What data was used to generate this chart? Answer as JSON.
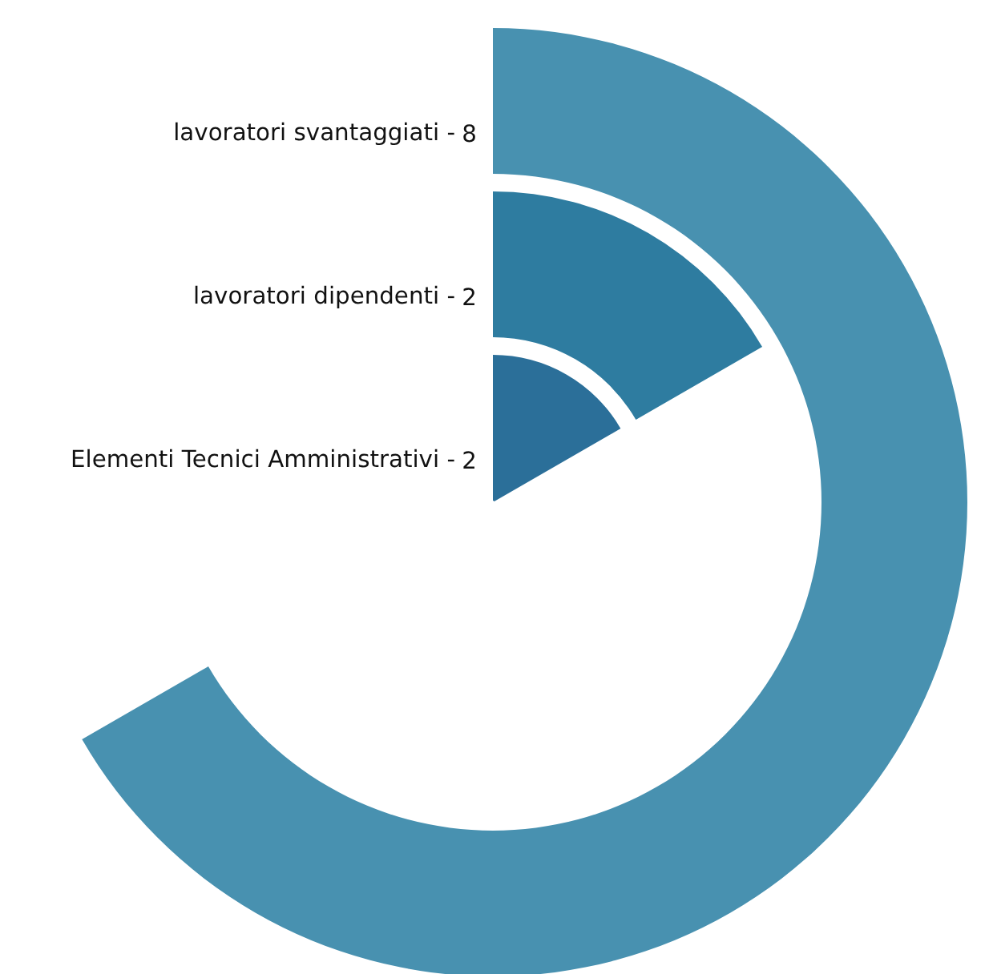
{
  "chart_data": {
    "type": "other",
    "categories": [
      "lavoratori svantaggiati -",
      "lavoratori dipendenti -",
      "Elementi Tecnici Amministrativi -"
    ],
    "values": [
      8,
      2,
      2
    ],
    "data_labels": true,
    "colors": [
      "#4891b0",
      "#2e7ca0",
      "#2b6f99"
    ]
  }
}
